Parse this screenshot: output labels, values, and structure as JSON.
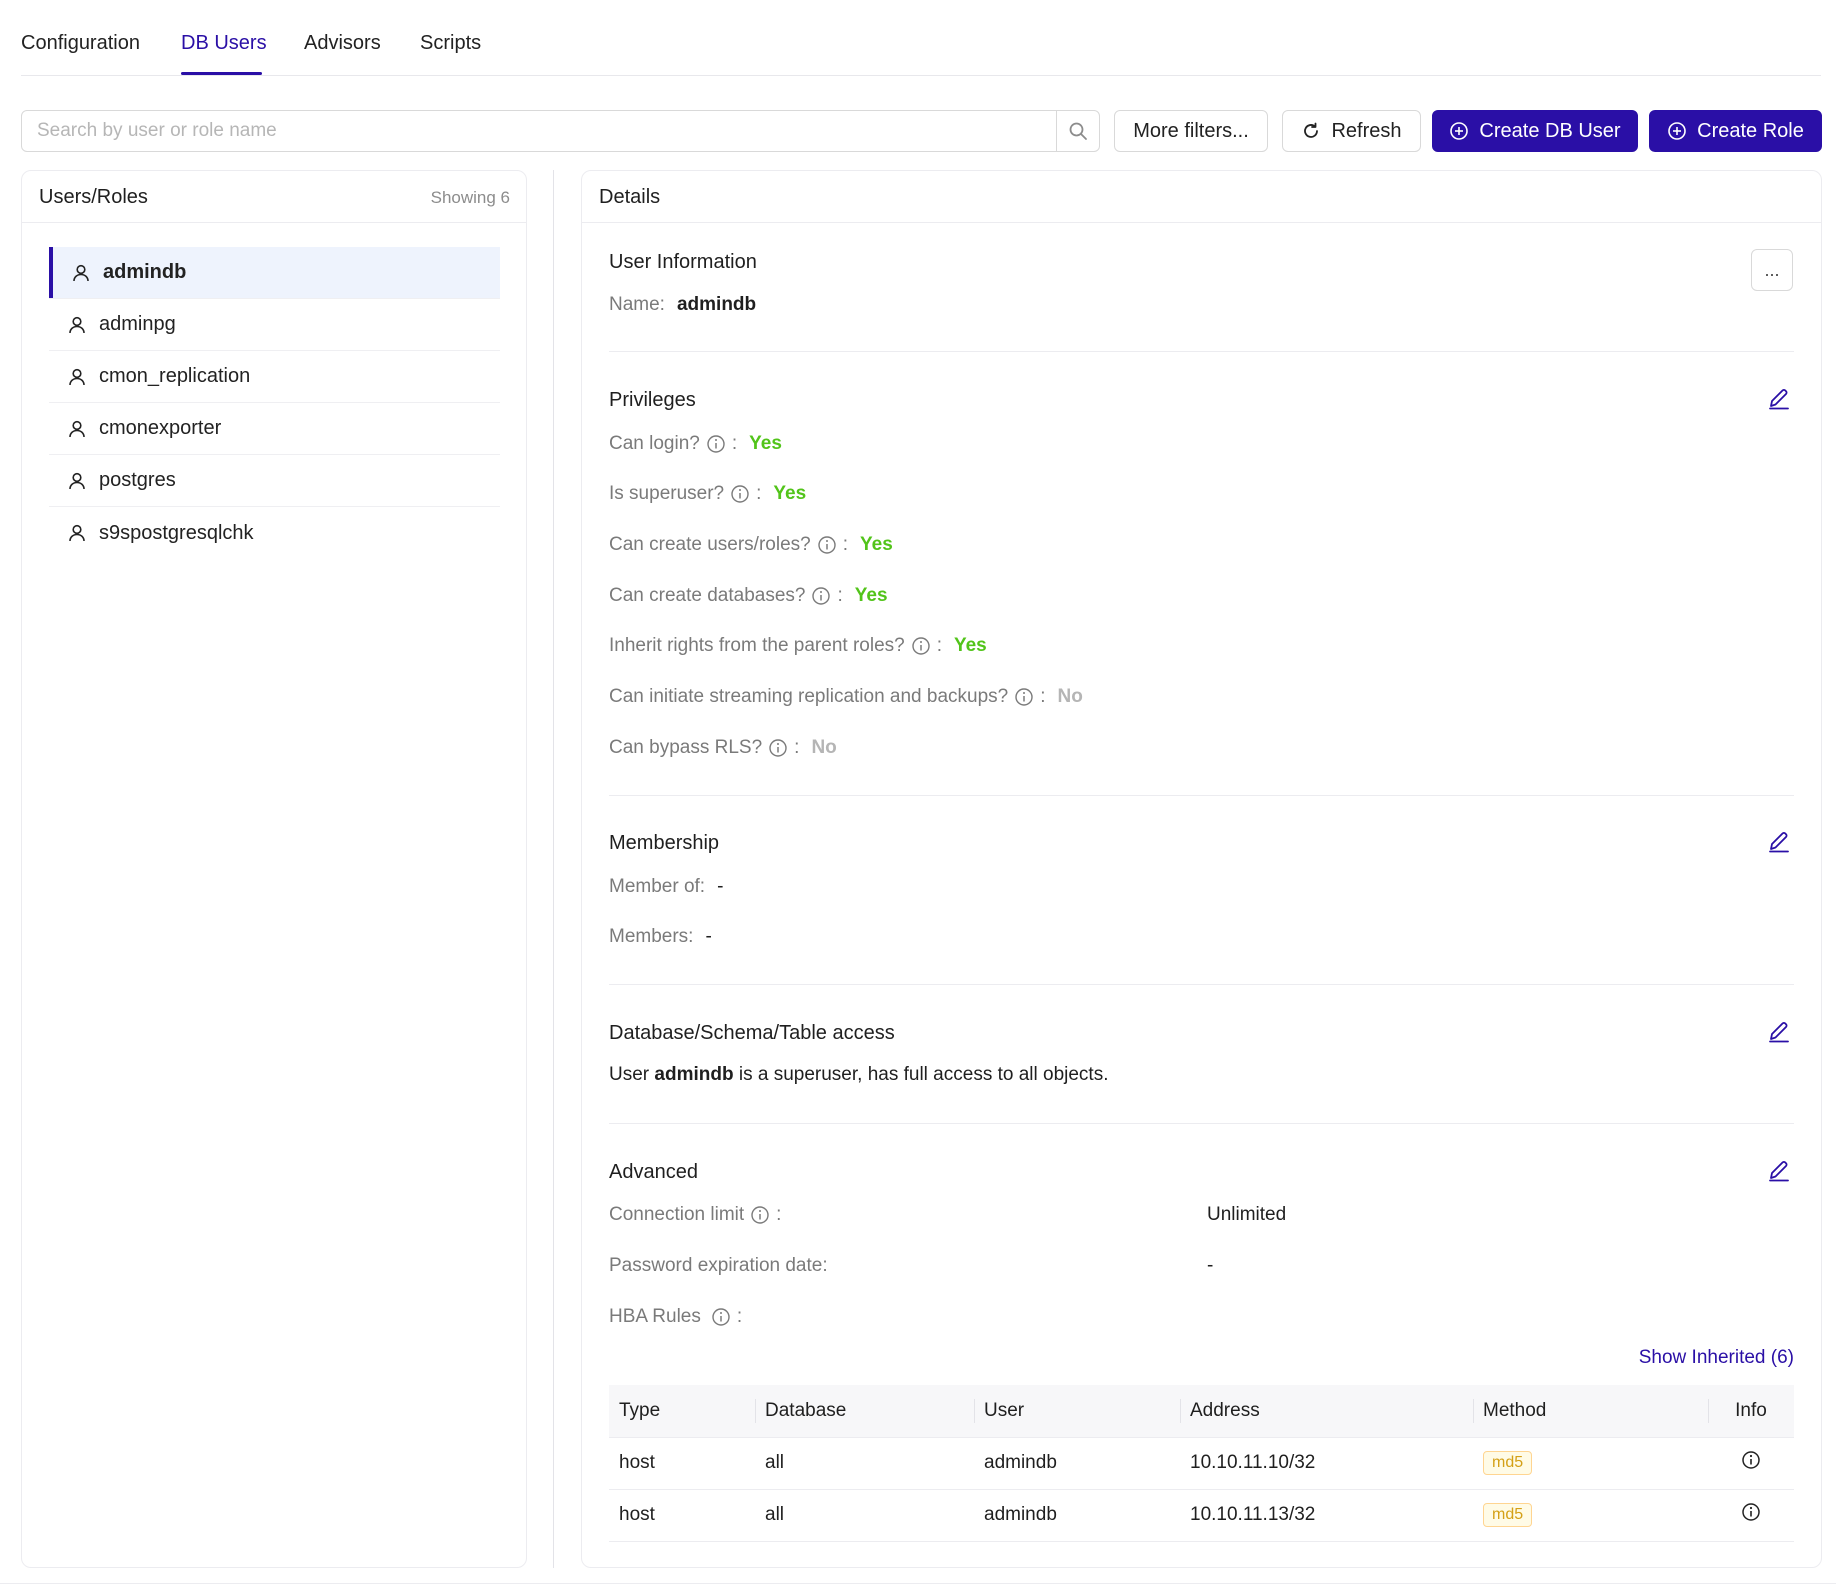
{
  "tabs": [
    {
      "label": "Configuration"
    },
    {
      "label": "DB Users",
      "active": true
    },
    {
      "label": "Advisors"
    },
    {
      "label": "Scripts"
    }
  ],
  "search": {
    "placeholder": "Search by user or role name",
    "value": ""
  },
  "toolbar": {
    "more_filters": "More filters...",
    "refresh": "Refresh",
    "create_user": "Create DB User",
    "create_role": "Create Role"
  },
  "colors": {
    "accent": "#2a0fa6",
    "yes": "#52c41a",
    "no": "#b5b5b5",
    "tag": "#d4a017"
  },
  "users_panel": {
    "title": "Users/Roles",
    "count": "Showing 6",
    "items": [
      {
        "label": "admindb",
        "active": true
      },
      {
        "label": "adminpg"
      },
      {
        "label": "cmon_replication"
      },
      {
        "label": "cmonexporter"
      },
      {
        "label": "postgres"
      },
      {
        "label": "s9spostgresqlchk"
      }
    ]
  },
  "details": {
    "title": "Details",
    "more_label": "...",
    "user_info": {
      "title": "User Information",
      "name_label": "Name:",
      "name_value": "admindb"
    },
    "privileges": {
      "title": "Privileges",
      "rows": [
        {
          "label": "Can login?",
          "value": "Yes"
        },
        {
          "label": "Is superuser?",
          "value": "Yes"
        },
        {
          "label": "Can create users/roles?",
          "value": "Yes"
        },
        {
          "label": "Can create databases?",
          "value": "Yes"
        },
        {
          "label": "Inherit rights from the parent roles?",
          "value": "Yes"
        },
        {
          "label": "Can initiate streaming replication and backups?",
          "value": "No"
        },
        {
          "label": "Can bypass RLS?",
          "value": "No"
        }
      ]
    },
    "membership": {
      "title": "Membership",
      "member_of_label": "Member of:",
      "member_of_value": "-",
      "members_label": "Members:",
      "members_value": "-"
    },
    "access": {
      "title": "Database/Schema/Table access",
      "text_pre": "User ",
      "user": "admindb",
      "text_post": " is a superuser, has full access to all objects."
    },
    "advanced": {
      "title": "Advanced",
      "conn_limit_label": "Connection limit",
      "conn_limit_value": "Unlimited",
      "pwd_exp_label": "Password expiration date:",
      "pwd_exp_value": "-",
      "hba_label": "HBA Rules",
      "show_inherited": "Show Inherited (6)"
    },
    "hba_table": {
      "columns": [
        "Type",
        "Database",
        "User",
        "Address",
        "Method",
        "Info"
      ],
      "rows": [
        {
          "type": "host",
          "database": "all",
          "user": "admindb",
          "address": "10.10.11.10/32",
          "method": "md5"
        },
        {
          "type": "host",
          "database": "all",
          "user": "admindb",
          "address": "10.10.11.13/32",
          "method": "md5"
        }
      ]
    }
  }
}
